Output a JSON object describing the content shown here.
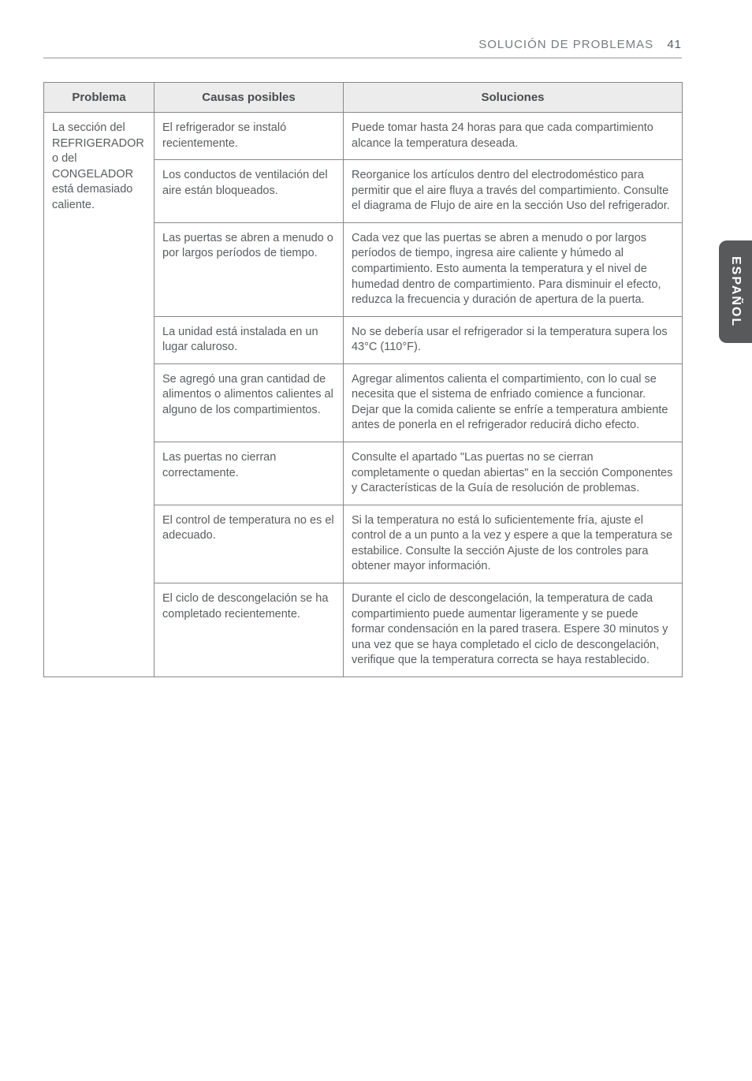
{
  "header": {
    "section": "SOLUCIÓN DE PROBLEMAS",
    "page": "41"
  },
  "side_tab": "ESPAÑOL",
  "table": {
    "columns": {
      "problem": "Problema",
      "cause": "Causas posibles",
      "solution": "Soluciones"
    },
    "problem_label": "La sección del REFRIGERADOR o del CONGELADOR está demasiado caliente.",
    "rows": [
      {
        "cause": "El refrigerador se instaló recientemente.",
        "solution": "Puede tomar hasta 24 horas para que cada compartimiento alcance la temperatura deseada."
      },
      {
        "cause": "Los conductos de ventilación del aire están bloqueados.",
        "solution": "Reorganice los artículos dentro del electrodoméstico para permitir que el aire fluya a través del compartimiento. Consulte el diagrama de Flujo de aire en la sección Uso del refrigerador."
      },
      {
        "cause": "Las puertas se abren a menudo o por largos períodos de tiempo.",
        "solution": "Cada vez que las puertas se abren a menudo o por largos períodos de tiempo, ingresa aire caliente y húmedo al compartimiento. Esto aumenta la temperatura y el nivel de humedad dentro de compartimiento. Para disminuir el efecto, reduzca la frecuencia y duración de apertura de la puerta."
      },
      {
        "cause": "La unidad está instalada en un lugar caluroso.",
        "solution": "No se debería usar el refrigerador si la temperatura supera los 43°C (110°F)."
      },
      {
        "cause": "Se agregó una gran cantidad de alimentos o alimentos calientes al alguno de los compartimientos.",
        "solution": "Agregar alimentos calienta el compartimiento, con lo cual se necesita que el sistema de enfriado comience a funcionar. Dejar que la comida caliente se enfríe a temperatura ambiente antes de ponerla en el refrigerador reducirá dicho efecto."
      },
      {
        "cause": "Las puertas no cierran correctamente.",
        "solution": "Consulte el apartado \"Las puertas no se cierran completamente o quedan abiertas\" en la sección Componentes y Características de la Guía de resolución de problemas."
      },
      {
        "cause": "El control de temperatura no es el adecuado.",
        "solution": "Si la temperatura no está lo suficientemente fría, ajuste el control de a un punto a la vez y espere a que la temperatura se estabilice. Consulte la sección Ajuste de los controles para obtener mayor información."
      },
      {
        "cause": "El ciclo de descongelación se ha completado recientemente.",
        "solution": "Durante el ciclo de descongelación, la temperatura de cada compartimiento puede aumentar ligeramente y se puede formar condensación en la pared trasera. Espere 30 minutos y  una vez que se haya completado el ciclo de descongelación, verifique que la temperatura correcta se haya restablecido."
      }
    ]
  }
}
